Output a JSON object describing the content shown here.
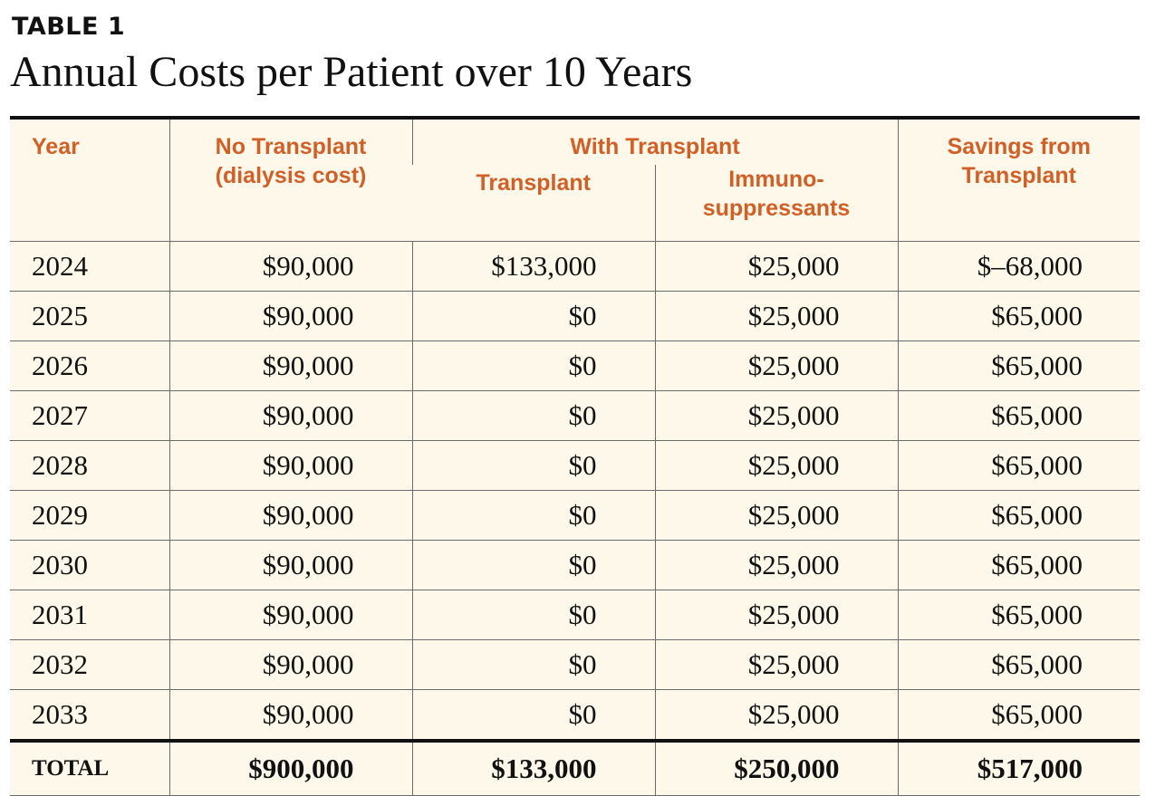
{
  "label": "TABLE 1",
  "title": "Annual Costs per Patient over 10 Years",
  "headers": {
    "year": "Year",
    "no_transplant_line1": "No Transplant",
    "no_transplant_line2": "(dialysis cost)",
    "with_transplant": "With Transplant",
    "transplant": "Transplant",
    "immuno_line1": "Immuno-",
    "immuno_line2": "suppressants",
    "savings_line1": "Savings from",
    "savings_line2": "Transplant"
  },
  "rows": [
    {
      "year": "2024",
      "no_transplant": "$90,000",
      "transplant": "$133,000",
      "immuno": "$25,000",
      "savings": "$–68,000"
    },
    {
      "year": "2025",
      "no_transplant": "$90,000",
      "transplant": "$0",
      "immuno": "$25,000",
      "savings": "$65,000"
    },
    {
      "year": "2026",
      "no_transplant": "$90,000",
      "transplant": "$0",
      "immuno": "$25,000",
      "savings": "$65,000"
    },
    {
      "year": "2027",
      "no_transplant": "$90,000",
      "transplant": "$0",
      "immuno": "$25,000",
      "savings": "$65,000"
    },
    {
      "year": "2028",
      "no_transplant": "$90,000",
      "transplant": "$0",
      "immuno": "$25,000",
      "savings": "$65,000"
    },
    {
      "year": "2029",
      "no_transplant": "$90,000",
      "transplant": "$0",
      "immuno": "$25,000",
      "savings": "$65,000"
    },
    {
      "year": "2030",
      "no_transplant": "$90,000",
      "transplant": "$0",
      "immuno": "$25,000",
      "savings": "$65,000"
    },
    {
      "year": "2031",
      "no_transplant": "$90,000",
      "transplant": "$0",
      "immuno": "$25,000",
      "savings": "$65,000"
    },
    {
      "year": "2032",
      "no_transplant": "$90,000",
      "transplant": "$0",
      "immuno": "$25,000",
      "savings": "$65,000"
    },
    {
      "year": "2033",
      "no_transplant": "$90,000",
      "transplant": "$0",
      "immuno": "$25,000",
      "savings": "$65,000"
    }
  ],
  "total": {
    "label": "TOTAL",
    "no_transplant": "$900,000",
    "transplant": "$133,000",
    "immuno": "$250,000",
    "savings": "$517,000"
  },
  "colors": {
    "header_text": "#d15f26",
    "table_background": "#fdf8ea"
  }
}
